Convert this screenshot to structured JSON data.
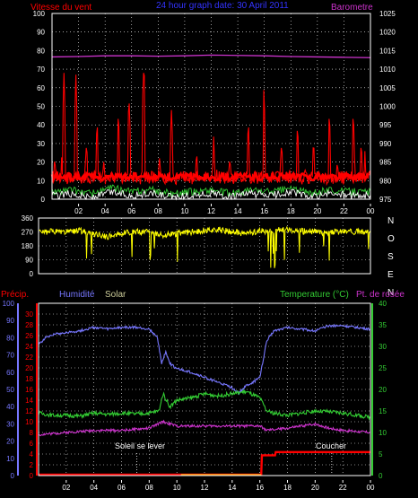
{
  "header": {
    "wind_label": "Vitesse du vent",
    "title": "24 hour graph date: 30 April 2011",
    "baro_label": "Barometre"
  },
  "colors": {
    "wind": "#ff0000",
    "title": "#3333ff",
    "baro": "#cc33cc",
    "gust_green": "#33cc33",
    "gust_white": "#ffffff",
    "direction": "#ffff00",
    "precip": "#ff0000",
    "humidity": "#7777ff",
    "solar": "#cccc99",
    "temperature": "#33cc33",
    "dewpoint": "#cc33cc",
    "grid_axis": "#ffffff",
    "tick_text": "#ffffff"
  },
  "compass": {
    "letters": [
      "N",
      "O",
      "S",
      "E",
      "N"
    ]
  },
  "bottom_header": {
    "precip_label": "Précip.",
    "humidity_label": "Humidité",
    "solar_label": "Solar",
    "temp_label": "Temperature (°C)",
    "dew_label": "Pt. de rosée"
  },
  "annotations": {
    "sunrise": "Soleil se lever",
    "sunset": "Coucher"
  },
  "chart_data": [
    {
      "type": "line",
      "name": "wind-barometer",
      "title": "24 hour graph date: 30 April 2011",
      "ylabel_left": "Vitesse du vent",
      "ylabel_right": "Barometre",
      "x_ticks": [
        "02",
        "04",
        "06",
        "08",
        "10",
        "12",
        "14",
        "16",
        "18",
        "20",
        "22",
        "00"
      ],
      "ylim_left": [
        0,
        100
      ],
      "y_ticks_left": [
        0,
        10,
        20,
        30,
        40,
        50,
        60,
        70,
        80,
        90,
        100
      ],
      "ylim_right": [
        975,
        1025
      ],
      "y_ticks_right": [
        975,
        980,
        985,
        990,
        995,
        1000,
        1005,
        1010,
        1015,
        1020,
        1025
      ],
      "grid": true,
      "series": [
        {
          "axis": "right",
          "x": [
            0,
            2,
            4,
            6,
            8,
            10,
            12,
            14,
            16,
            18,
            20,
            22,
            24
          ],
          "values": [
            1013.3,
            1013.4,
            1013.6,
            1013.6,
            1013.5,
            1013.6,
            1013.8,
            1013.7,
            1013.6,
            1013.4,
            1013.3,
            1013.2,
            1013.1
          ]
        },
        {
          "axis": "left",
          "x": [
            0,
            0.2,
            0.5,
            0.9,
            1.4,
            1.8,
            2.1,
            2.6,
            3.0,
            3.4,
            3.9,
            4.5,
            5.0,
            5.3,
            5.8,
            6.3,
            6.9,
            7.5,
            8.1,
            8.6,
            9.0,
            9.7,
            10.3,
            10.9,
            11.6,
            12.2,
            12.8,
            13.4,
            14.1,
            14.8,
            15.4,
            16.0,
            16.7,
            17.3,
            17.9,
            18.5,
            19.1,
            19.7,
            20.2,
            20.9,
            21.5,
            22.1,
            22.7,
            23.3,
            23.8,
            24
          ],
          "values": [
            8,
            22,
            12,
            68,
            15,
            67,
            10,
            30,
            12,
            42,
            20,
            14,
            47,
            10,
            56,
            12,
            68,
            15,
            22,
            10,
            48,
            16,
            12,
            25,
            10,
            27,
            14,
            22,
            12,
            42,
            16,
            52,
            14,
            30,
            13,
            40,
            17,
            30,
            12,
            47,
            20,
            15,
            47,
            30,
            12,
            12
          ]
        },
        {
          "axis": "left",
          "x": [
            0,
            1.5,
            3,
            4.5,
            6,
            7.5,
            9,
            10.5,
            12,
            13.5,
            15,
            16.5,
            18,
            19.5,
            21,
            22.5,
            24
          ],
          "values": [
            4,
            5,
            3,
            6,
            4,
            5,
            3,
            4,
            5,
            3,
            5,
            4,
            6,
            3,
            5,
            4,
            4
          ]
        },
        {
          "axis": "left",
          "x": [
            0,
            1.5,
            3,
            4.5,
            6,
            7.5,
            9,
            10.5,
            12,
            13.5,
            15,
            16.5,
            18,
            19.5,
            21,
            22.5,
            24
          ],
          "values": [
            2,
            3,
            1,
            4,
            2,
            3,
            1,
            2,
            3,
            1,
            3,
            2,
            4,
            1,
            3,
            2,
            2
          ]
        }
      ]
    },
    {
      "type": "scatter",
      "name": "wind-direction",
      "x_ticks": [],
      "ylim": [
        0,
        360
      ],
      "y_ticks": [
        0,
        90,
        180,
        270,
        360
      ],
      "grid": true,
      "series": [
        {
          "x": [
            0,
            1,
            2,
            3,
            4,
            5,
            6,
            7,
            8,
            9,
            10,
            11,
            12,
            13,
            14,
            15,
            16,
            17,
            18,
            19,
            20,
            21,
            22,
            23,
            24
          ],
          "values": [
            265,
            275,
            270,
            280,
            255,
            240,
            260,
            270,
            275,
            250,
            260,
            270,
            280,
            285,
            270,
            260,
            275,
            280,
            285,
            275,
            270,
            265,
            275,
            270,
            270
          ]
        }
      ]
    },
    {
      "type": "line",
      "name": "precip-humidity-temperature",
      "x_ticks": [
        "02",
        "04",
        "06",
        "08",
        "10",
        "12",
        "14",
        "16",
        "18",
        "20",
        "22",
        "00"
      ],
      "y_ticks_humidity": [
        0,
        10,
        20,
        30,
        40,
        50,
        60,
        70,
        80,
        90,
        100
      ],
      "ylim_humidity": [
        0,
        100
      ],
      "y_ticks_precip": [
        0,
        2,
        4,
        6,
        8,
        10,
        12,
        14,
        16,
        18,
        20,
        22,
        24,
        26,
        28,
        30
      ],
      "ylim_precip": [
        0,
        32
      ],
      "y_ticks_temp": [
        0,
        5,
        10,
        15,
        20,
        25,
        30,
        35,
        40
      ],
      "ylim_temp": [
        0,
        40
      ],
      "grid": true,
      "series": [
        {
          "axis": "humidity",
          "x": [
            0,
            0.5,
            1,
            2,
            3,
            4,
            5,
            6,
            7,
            8,
            8.6,
            8.9,
            9.2,
            9.5,
            10,
            11,
            12,
            13,
            14,
            14.5,
            15,
            15.5,
            16,
            16.5,
            17,
            18,
            19,
            20,
            21,
            22,
            23,
            24
          ],
          "values": [
            76,
            80,
            82,
            83,
            84,
            86,
            85,
            86,
            86,
            85,
            80,
            65,
            72,
            65,
            62,
            60,
            57,
            54,
            51,
            48,
            52,
            54,
            57,
            78,
            84,
            86,
            85,
            84,
            87,
            87,
            86,
            85
          ]
        },
        {
          "axis": "temp",
          "x": [
            0,
            1,
            2,
            3,
            4,
            5,
            6,
            7,
            8,
            8.7,
            9,
            9.5,
            10,
            11,
            12,
            13,
            14,
            15,
            16,
            16.5,
            17,
            18,
            19,
            20,
            21,
            22,
            23,
            24
          ],
          "values": [
            14.5,
            14,
            14,
            13.8,
            14.5,
            14.2,
            14.5,
            14.3,
            14.5,
            15,
            19,
            16,
            17.5,
            18,
            19,
            18.5,
            19,
            19.5,
            18,
            15,
            14.5,
            14,
            14.5,
            15,
            14.8,
            14.5,
            14,
            13.5
          ]
        },
        {
          "axis": "temp",
          "x": [
            0,
            2,
            4,
            6,
            8,
            9,
            10,
            12,
            14,
            16,
            16.5,
            18,
            20,
            21,
            22,
            24
          ],
          "values": [
            9.5,
            10,
            10.5,
            10.5,
            11,
            12.5,
            11.5,
            11.5,
            11.5,
            11.5,
            10.5,
            11,
            12,
            11,
            10.5,
            10
          ]
        },
        {
          "axis": "precip",
          "x": [
            0,
            16.1,
            16.15,
            17.1,
            17.15,
            24
          ],
          "values": [
            0,
            0,
            3.6,
            3.6,
            4.2,
            4.2
          ]
        }
      ]
    }
  ]
}
